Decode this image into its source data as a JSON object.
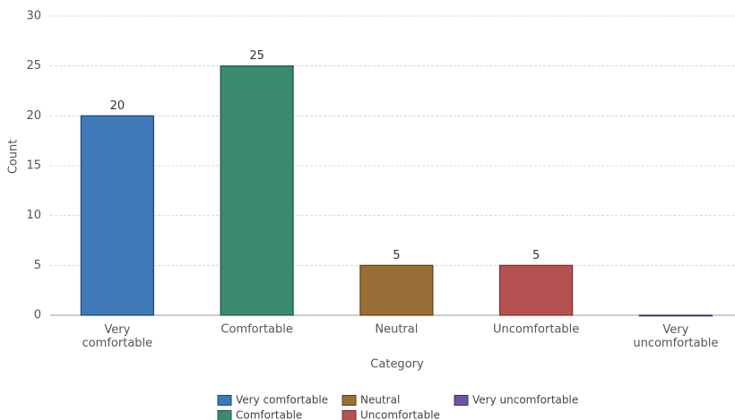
{
  "chart_data": {
    "type": "bar",
    "categories": [
      "Very comfortable",
      "Comfortable",
      "Neutral",
      "Uncomfortable",
      "Very uncomfortable"
    ],
    "values": [
      20,
      25,
      5,
      5,
      0
    ],
    "colors": [
      "#4079b8",
      "#3a8a72",
      "#9a6e36",
      "#b45252",
      "#6f55a0"
    ],
    "edge_colors": [
      "#1f4576",
      "#1f5546",
      "#5e4118",
      "#7c2a2a",
      "#3f2c6b"
    ],
    "xlabel": "Category",
    "ylabel": "Count",
    "ylim": [
      0,
      30
    ],
    "yticks": [
      0,
      5,
      10,
      15,
      20,
      25,
      30
    ],
    "grid": true,
    "legend": "bottom"
  }
}
